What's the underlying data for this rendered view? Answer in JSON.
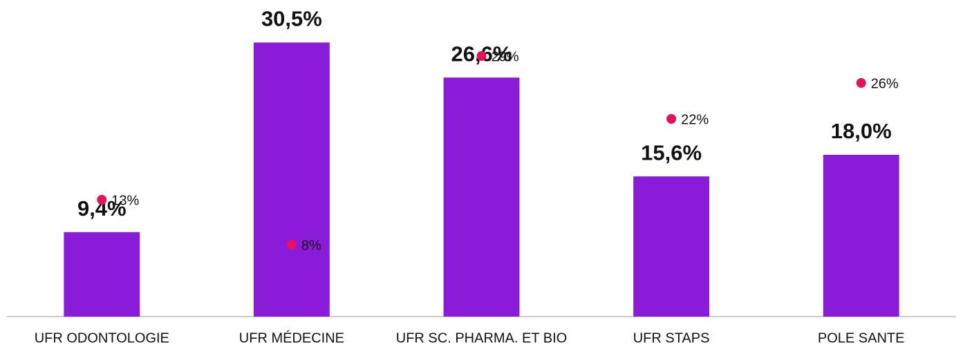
{
  "chart_data": {
    "type": "bar",
    "categories": [
      "UFR ODONTOLOGIE",
      "UFR MÉDECINE",
      "UFR SC. PHARMA. ET BIO",
      "UFR STAPS",
      "POLE SANTE"
    ],
    "series": [
      {
        "type": "bar",
        "color": "#8a1bd8",
        "values": [
          9.4,
          30.5,
          26.6,
          15.6,
          18.0
        ],
        "value_labels": [
          "9,4%",
          "30,5%",
          "26,6%",
          "15,6%",
          "18,0%"
        ]
      },
      {
        "type": "scatter",
        "color": "#e8125c",
        "values": [
          13,
          8,
          29,
          22,
          26
        ],
        "value_labels": [
          "13%",
          "8%",
          "29%",
          "22%",
          "26%"
        ]
      }
    ],
    "ylim": [
      0,
      35
    ]
  }
}
